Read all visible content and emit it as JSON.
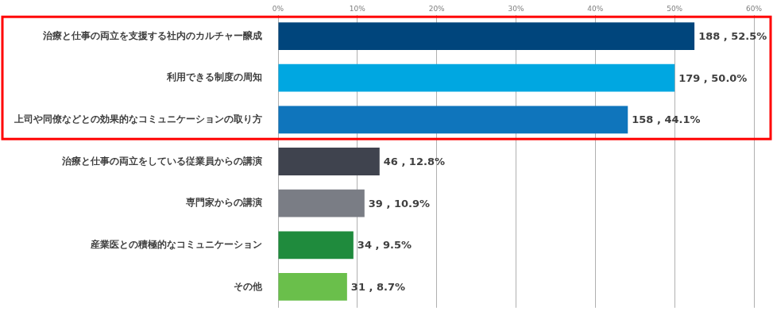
{
  "chart_data": {
    "type": "bar",
    "orientation": "horizontal",
    "categories": [
      "治療と仕事の両立を支援する社内のカルチャー醸成",
      "利用できる制度の周知",
      "上司や同僚などとの効果的なコミュニケーションの取り方",
      "治療と仕事の両立をしている従業員からの講演",
      "専門家からの講演",
      "産業医との積極的なコミュニケーション",
      "その他"
    ],
    "values": [
      52.5,
      50.0,
      44.1,
      12.8,
      10.9,
      9.5,
      8.7
    ],
    "value_labels": [
      "188 , 52.5%",
      "179 , 50.0%",
      "158 , 44.1%",
      "46 , 12.8%",
      "39 , 10.9%",
      "34 , 9.5%",
      "31 , 8.7%"
    ],
    "colors": [
      "#00457c",
      "#00a7e1",
      "#0f75bc",
      "#3f434e",
      "#7a7d85",
      "#1f8b3d",
      "#6abf4b"
    ],
    "xlim": [
      0,
      60
    ],
    "xticks": [
      {
        "value": 0,
        "label": "0%"
      },
      {
        "value": 10,
        "label": "10%"
      },
      {
        "value": 20,
        "label": "20%"
      },
      {
        "value": 30,
        "label": "30%"
      },
      {
        "value": 40,
        "label": "40%"
      },
      {
        "value": 50,
        "label": "50%"
      },
      {
        "value": 60,
        "label": "60%"
      }
    ],
    "grid": true,
    "data_labels": true
  }
}
